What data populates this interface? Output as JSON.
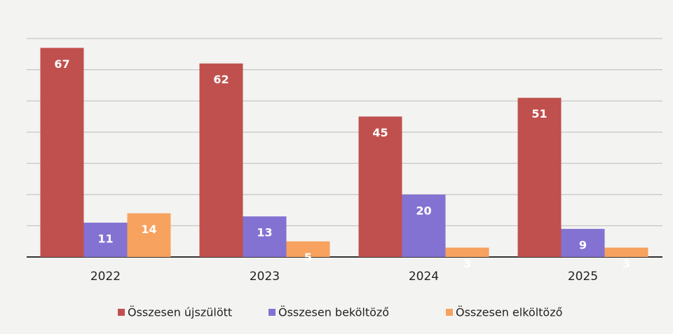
{
  "chart_data": {
    "type": "bar",
    "categories": [
      "2022",
      "2023",
      "2024",
      "2025"
    ],
    "series": [
      {
        "name": "Összesen újszülött",
        "color": "#c0504d",
        "values": [
          67,
          62,
          45,
          51
        ]
      },
      {
        "name": "Összesen beköltöző",
        "color": "#8472d2",
        "values": [
          11,
          13,
          20,
          9
        ]
      },
      {
        "name": "Összesen elköltöző",
        "color": "#f7a25e",
        "values": [
          14,
          5,
          3,
          3
        ]
      }
    ],
    "ylim": [
      0,
      70
    ],
    "yticks": [
      0,
      10,
      20,
      30,
      40,
      50,
      60,
      70
    ],
    "grid": true,
    "legend": "bottom"
  }
}
